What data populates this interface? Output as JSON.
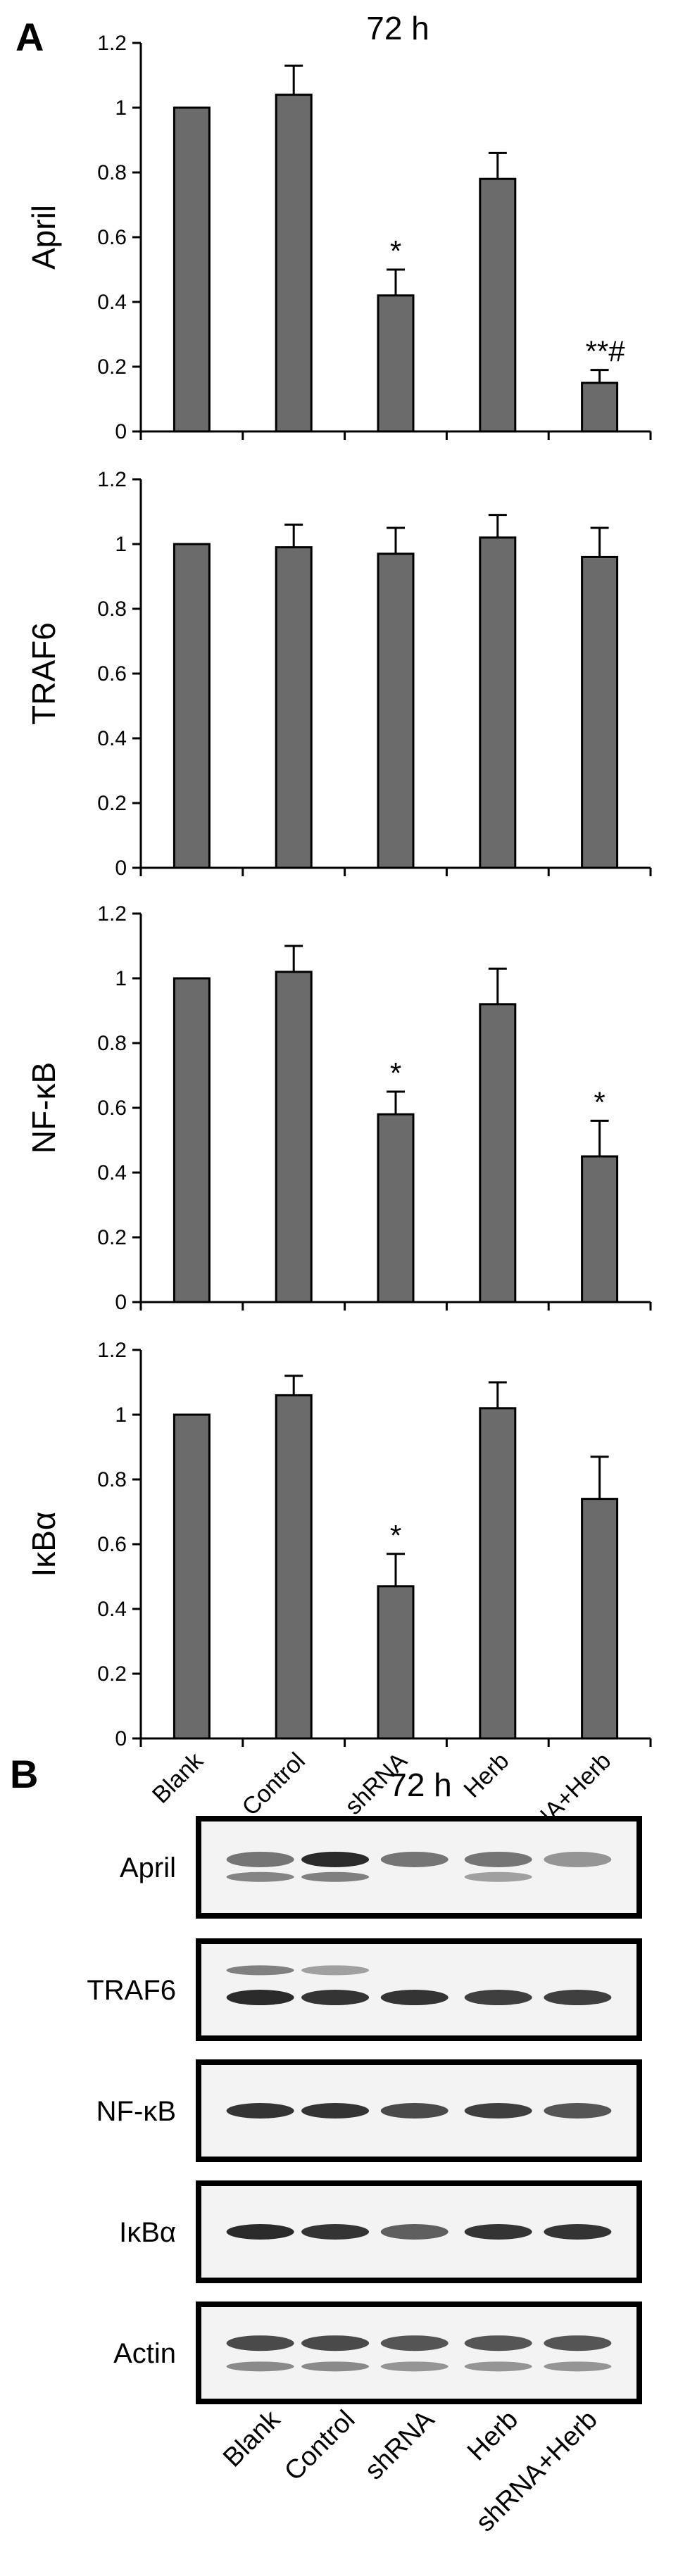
{
  "panel_a": {
    "letter": "A",
    "time_label": "72 h"
  },
  "panel_b": {
    "letter": "B",
    "time_label": "72 h",
    "blots": [
      "April",
      "TRAF6",
      "NF-κB",
      "IκBα",
      "Actin"
    ],
    "lanes": [
      "Blank",
      "Control",
      "shRNA",
      "Herb",
      "shRNA+Herb"
    ]
  },
  "chart_data": [
    {
      "type": "bar",
      "categories": [
        "Blank",
        "Control",
        "shRNA",
        "Herb",
        "shRNA+Herb"
      ],
      "values": [
        1.0,
        1.04,
        0.42,
        0.78,
        0.15
      ],
      "errors": [
        0.0,
        0.09,
        0.08,
        0.08,
        0.04
      ],
      "annotations": [
        "",
        "",
        "*",
        "",
        "**#"
      ],
      "ylabel": "April",
      "ylim": [
        0,
        1.2
      ],
      "yticks": [
        "0",
        "0.2",
        "0.4",
        "0.6",
        "0.8",
        "1",
        "1.2"
      ],
      "color": "#6b6b6b"
    },
    {
      "type": "bar",
      "categories": [
        "Blank",
        "Control",
        "shRNA",
        "Herb",
        "shRNA+Herb"
      ],
      "values": [
        1.0,
        0.99,
        0.97,
        1.02,
        0.96
      ],
      "errors": [
        0.0,
        0.07,
        0.08,
        0.07,
        0.09
      ],
      "annotations": [
        "",
        "",
        "",
        "",
        ""
      ],
      "ylabel": "TRAF6",
      "ylim": [
        0,
        1.2
      ],
      "yticks": [
        "0",
        "0.2",
        "0.4",
        "0.6",
        "0.8",
        "1",
        "1.2"
      ],
      "color": "#6b6b6b"
    },
    {
      "type": "bar",
      "categories": [
        "Blank",
        "Control",
        "shRNA",
        "Herb",
        "shRNA+Herb"
      ],
      "values": [
        1.0,
        1.02,
        0.58,
        0.92,
        0.45
      ],
      "errors": [
        0.0,
        0.08,
        0.07,
        0.11,
        0.11
      ],
      "annotations": [
        "",
        "",
        "*",
        "",
        "*"
      ],
      "ylabel": "NF-κB",
      "ylim": [
        0,
        1.2
      ],
      "yticks": [
        "0",
        "0.2",
        "0.4",
        "0.6",
        "0.8",
        "1",
        "1.2"
      ],
      "color": "#6b6b6b"
    },
    {
      "type": "bar",
      "categories": [
        "Blank",
        "Control",
        "shRNA",
        "Herb",
        "shRNA+Herb"
      ],
      "values": [
        1.0,
        1.06,
        0.47,
        1.02,
        0.74
      ],
      "errors": [
        0.0,
        0.06,
        0.1,
        0.08,
        0.13
      ],
      "annotations": [
        "",
        "",
        "*",
        "",
        ""
      ],
      "ylabel": "IκBα",
      "ylim": [
        0,
        1.2
      ],
      "yticks": [
        "0",
        "0.2",
        "0.4",
        "0.6",
        "0.8",
        "1",
        "1.2"
      ],
      "color": "#6b6b6b"
    }
  ]
}
